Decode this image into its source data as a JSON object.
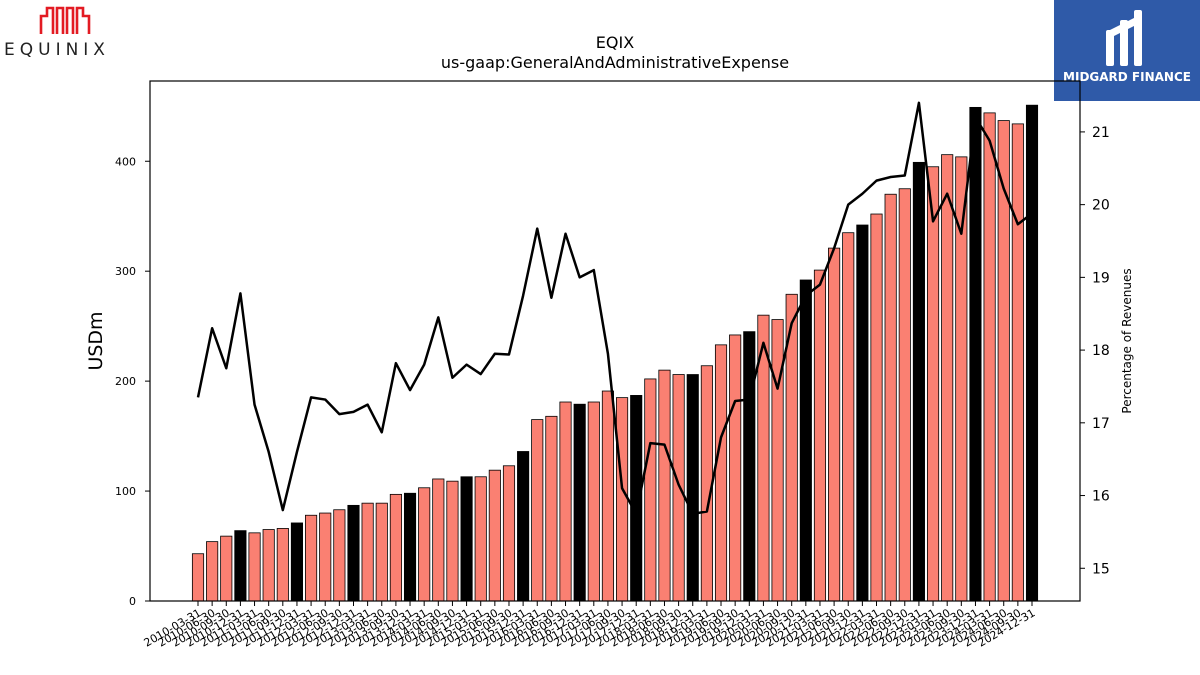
{
  "logos": {
    "left_word": "EQUINIX",
    "right_word": "MIDGARD FINANCE",
    "left_color": "#e31b23",
    "right_bg": "#2f5aa8"
  },
  "chart_data": {
    "type": "bar",
    "title": "EQIX",
    "subtitle": "us-gaap:GeneralAndAdministrativeExpense",
    "ylabel": "USDm",
    "y2label": "Percentage of Revenues",
    "ylim": [
      0,
      473
    ],
    "y2lim": [
      14.55,
      21.7
    ],
    "yticks": [
      0,
      100,
      200,
      300,
      400
    ],
    "y2ticks": [
      15,
      16,
      17,
      18,
      19,
      20,
      21
    ],
    "colors": {
      "quarter_bar": "#fa8072",
      "annual_bar": "#000000",
      "line": "#000000"
    },
    "categories": [
      "2010-03-31",
      "2010-06-30",
      "2010-09-30",
      "2010-12-31",
      "2011-03-31",
      "2011-06-30",
      "2011-09-30",
      "2011-12-31",
      "2012-03-31",
      "2012-06-30",
      "2012-09-30",
      "2012-12-31",
      "2013-03-31",
      "2013-06-30",
      "2013-09-30",
      "2013-12-31",
      "2014-03-31",
      "2014-06-30",
      "2014-09-30",
      "2014-12-31",
      "2015-03-31",
      "2015-06-30",
      "2015-09-30",
      "2015-12-31",
      "2016-03-31",
      "2016-06-30",
      "2016-09-30",
      "2016-12-31",
      "2017-03-31",
      "2017-06-30",
      "2017-09-30",
      "2017-12-31",
      "2018-03-31",
      "2018-06-30",
      "2018-09-30",
      "2018-12-31",
      "2019-03-31",
      "2019-06-30",
      "2019-09-30",
      "2019-12-31",
      "2020-03-31",
      "2020-06-30",
      "2020-09-30",
      "2020-12-31",
      "2021-03-31",
      "2021-06-30",
      "2021-09-30",
      "2021-12-31",
      "2022-03-31",
      "2022-06-30",
      "2022-09-30",
      "2022-12-31",
      "2023-03-31",
      "2023-06-30",
      "2023-09-30",
      "2023-12-31",
      "2024-03-31",
      "2024-06-30",
      "2024-09-30",
      "2024-12-31"
    ],
    "series": [
      {
        "values": [
          43,
          54,
          59,
          64,
          62,
          65,
          66,
          71,
          78,
          80,
          83,
          87,
          89,
          89,
          97,
          98,
          103,
          111,
          109,
          113,
          113,
          119,
          123,
          136,
          165,
          168,
          181,
          179,
          181,
          191,
          185,
          187,
          202,
          210,
          206,
          206,
          214,
          233,
          242,
          245,
          260,
          256,
          279,
          292,
          301,
          321,
          335,
          342,
          352,
          370,
          375,
          399,
          395,
          406,
          404,
          449,
          444,
          437,
          434,
          451
        ],
        "annual": [
          false,
          false,
          false,
          true,
          false,
          false,
          false,
          true,
          false,
          false,
          false,
          true,
          false,
          false,
          false,
          true,
          false,
          false,
          false,
          true,
          false,
          false,
          false,
          true,
          false,
          false,
          false,
          true,
          false,
          false,
          false,
          true,
          false,
          false,
          false,
          true,
          false,
          false,
          false,
          true,
          false,
          false,
          false,
          true,
          false,
          false,
          false,
          true,
          false,
          false,
          false,
          true,
          false,
          false,
          false,
          true,
          false,
          false,
          false,
          true
        ]
      },
      {
        "axis": "right",
        "values": [
          17.35,
          18.3,
          17.75,
          18.78,
          17.25,
          16.6,
          15.8,
          16.6,
          17.35,
          17.32,
          17.12,
          17.15,
          17.25,
          16.87,
          17.82,
          17.45,
          17.8,
          18.45,
          17.62,
          17.8,
          17.67,
          17.95,
          17.94,
          18.75,
          19.67,
          18.72,
          19.6,
          19.0,
          19.1,
          17.95,
          16.1,
          15.75,
          16.72,
          16.7,
          16.15,
          15.75,
          15.78,
          16.8,
          17.3,
          17.32,
          18.1,
          17.47,
          18.37,
          18.75,
          18.9,
          19.4,
          20.0,
          20.15,
          20.33,
          20.38,
          20.4,
          21.4,
          19.77,
          20.15,
          19.6,
          21.2,
          20.88,
          20.22,
          19.73,
          19.88
        ]
      }
    ]
  }
}
